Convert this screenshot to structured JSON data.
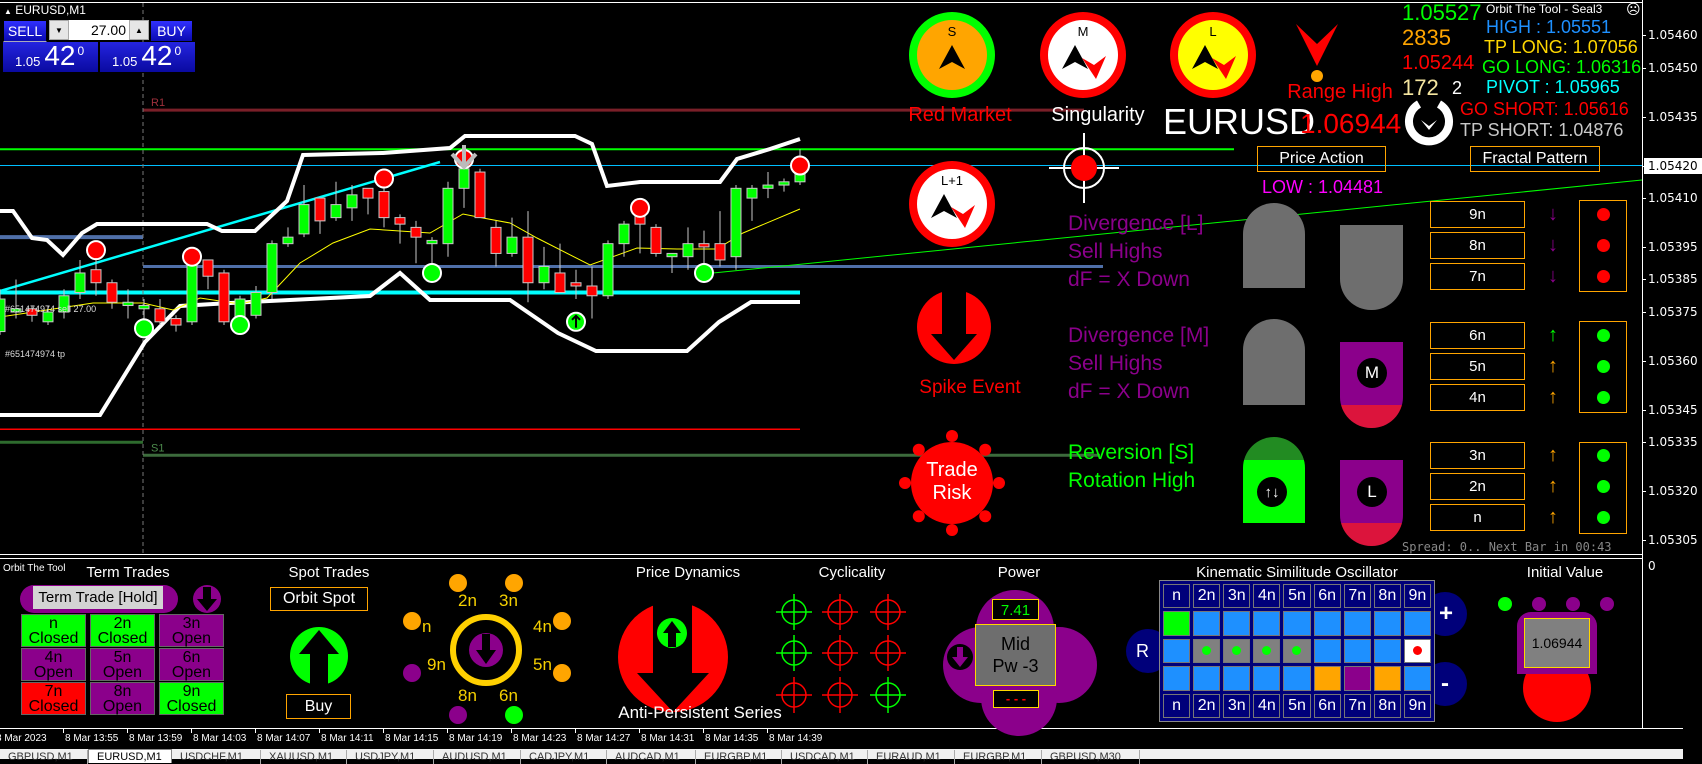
{
  "window": {
    "symbol_title": "EURUSD,M1"
  },
  "trade_panel": {
    "sell_label": "SELL",
    "buy_label": "BUY",
    "lot": "27.00",
    "sell_price": {
      "prefix": "1.05",
      "big": "42",
      "sup": "0"
    },
    "buy_price": {
      "prefix": "1.05",
      "big": "42",
      "sup": "0"
    }
  },
  "chart_data": {
    "type": "candlestick",
    "symbol": "EURUSD",
    "timeframe": "M1",
    "colors": {
      "up": "#00ff00",
      "down": "#ff0000"
    },
    "candles": [
      [
        "13:51",
        1.05369,
        1.05382,
        1.05368,
        1.05379
      ],
      [
        "13:52",
        1.05375,
        1.05385,
        1.05373,
        1.05376
      ],
      [
        "13:53",
        1.05376,
        1.05377,
        1.05372,
        1.05374
      ],
      [
        "13:54",
        1.05372,
        1.05377,
        1.05371,
        1.05375
      ],
      [
        "13:55",
        1.05375,
        1.05382,
        1.05373,
        1.0538
      ],
      [
        "13:56",
        1.05381,
        1.05391,
        1.05379,
        1.05387
      ],
      [
        "13:57",
        1.05388,
        1.05394,
        1.0538,
        1.05384
      ],
      [
        "13:58",
        1.05384,
        1.05385,
        1.05376,
        1.05378
      ],
      [
        "13:59",
        1.05377,
        1.05382,
        1.05373,
        1.05378
      ],
      [
        "14:00",
        1.05376,
        1.05379,
        1.05373,
        1.05377
      ],
      [
        "14:01",
        1.05376,
        1.05379,
        1.05371,
        1.05372
      ],
      [
        "14:02",
        1.05373,
        1.05374,
        1.05369,
        1.05371
      ],
      [
        "14:03",
        1.05372,
        1.05392,
        1.05371,
        1.0539
      ],
      [
        "14:04",
        1.05391,
        1.05391,
        1.05382,
        1.05386
      ],
      [
        "14:05",
        1.05387,
        1.05388,
        1.05371,
        1.05372
      ],
      [
        "14:06",
        1.05373,
        1.0538,
        1.05372,
        1.05379
      ],
      [
        "14:07",
        1.05374,
        1.05383,
        1.05373,
        1.05381
      ],
      [
        "14:08",
        1.05381,
        1.05397,
        1.05379,
        1.05396
      ],
      [
        "14:09",
        1.05396,
        1.05401,
        1.05395,
        1.05398
      ],
      [
        "14:10",
        1.05399,
        1.05414,
        1.05398,
        1.05408
      ],
      [
        "14:11",
        1.0541,
        1.0541,
        1.05399,
        1.05403
      ],
      [
        "14:12",
        1.05404,
        1.05415,
        1.05403,
        1.05408
      ],
      [
        "14:13",
        1.05407,
        1.05414,
        1.05403,
        1.05411
      ],
      [
        "14:14",
        1.05413,
        1.05413,
        1.05405,
        1.0541
      ],
      [
        "14:15",
        1.05412,
        1.05417,
        1.05401,
        1.05404
      ],
      [
        "14:16",
        1.05404,
        1.05405,
        1.05396,
        1.05402
      ],
      [
        "14:17",
        1.05401,
        1.05403,
        1.0539,
        1.05398
      ],
      [
        "14:18",
        1.05396,
        1.05398,
        1.05386,
        1.05397
      ],
      [
        "14:19",
        1.05396,
        1.05415,
        1.05392,
        1.05413
      ],
      [
        "14:20",
        1.05413,
        1.05421,
        1.05407,
        1.05419
      ],
      [
        "14:21",
        1.05418,
        1.05419,
        1.05404,
        1.05404
      ],
      [
        "14:22",
        1.05401,
        1.05403,
        1.05389,
        1.05393
      ],
      [
        "14:23",
        1.05393,
        1.05404,
        1.05392,
        1.05398
      ],
      [
        "14:24",
        1.05398,
        1.05406,
        1.05378,
        1.05384
      ],
      [
        "14:25",
        1.05384,
        1.05395,
        1.05382,
        1.05389
      ],
      [
        "14:26",
        1.05387,
        1.05396,
        1.05381,
        1.05381
      ],
      [
        "14:27",
        1.05384,
        1.05388,
        1.05379,
        1.05383
      ],
      [
        "14:28",
        1.05383,
        1.05389,
        1.05373,
        1.0538
      ],
      [
        "14:29",
        1.0538,
        1.05397,
        1.05379,
        1.05396
      ],
      [
        "14:30",
        1.05396,
        1.05403,
        1.05392,
        1.05402
      ],
      [
        "14:31",
        1.05405,
        1.05407,
        1.05393,
        1.05402
      ],
      [
        "14:32",
        1.05401,
        1.05402,
        1.05392,
        1.05393
      ],
      [
        "14:33",
        1.05392,
        1.05393,
        1.05387,
        1.05393
      ],
      [
        "14:34",
        1.05392,
        1.05401,
        1.05388,
        1.05396
      ],
      [
        "14:35",
        1.05396,
        1.054,
        1.05387,
        1.05395
      ],
      [
        "14:36",
        1.05396,
        1.05406,
        1.05389,
        1.05391
      ],
      [
        "14:37",
        1.05392,
        1.05414,
        1.05388,
        1.05413
      ],
      [
        "14:38",
        1.0541,
        1.05414,
        1.05403,
        1.05413
      ],
      [
        "14:39",
        1.05413,
        1.05418,
        1.0541,
        1.05414
      ],
      [
        "14:40",
        1.05414,
        1.05416,
        1.05412,
        1.05415
      ],
      [
        "14:41",
        1.05415,
        1.05425,
        1.05414,
        1.0542
      ]
    ],
    "markers": [
      {
        "time": "13:57",
        "price": 1.05394,
        "kind": "sell"
      },
      {
        "time": "14:03",
        "price": 1.05392,
        "kind": "sell"
      },
      {
        "time": "14:15",
        "price": 1.05416,
        "kind": "sell"
      },
      {
        "time": "14:31",
        "price": 1.05407,
        "kind": "sell"
      },
      {
        "time": "14:41",
        "price": 1.0542,
        "kind": "sell"
      },
      {
        "time": "14:00",
        "price": 1.0537,
        "kind": "buy"
      },
      {
        "time": "14:06",
        "price": 1.05371,
        "kind": "buy"
      },
      {
        "time": "14:18",
        "price": 1.05387,
        "kind": "buy"
      },
      {
        "time": "14:27",
        "price": 1.05372,
        "kind": "buy-arrow"
      },
      {
        "time": "14:35",
        "price": 1.05387,
        "kind": "buy"
      },
      {
        "time": "14:20",
        "price": 1.05422,
        "kind": "down-arrow"
      }
    ],
    "levels": [
      {
        "price": 1.05437,
        "color": "#7a1f28",
        "label": "R1"
      },
      {
        "price": 1.05425,
        "color": "#00ff00"
      },
      {
        "price": 1.0542,
        "color": "#00bfff"
      },
      {
        "price": 1.05398,
        "color": "#4f6fa8"
      },
      {
        "price": 1.05389,
        "color": "#4f6fa8"
      },
      {
        "price": 1.05381,
        "color": "#00ffff"
      },
      {
        "price": 1.05339,
        "color": "#ff0000"
      },
      {
        "price": 1.05335,
        "color": "#2e6b2e"
      },
      {
        "price": 1.05331,
        "color": "#3c6b3c",
        "label": "S1"
      }
    ],
    "order_labels": [
      "#651474974 sell 27.00",
      "#651474974 tp"
    ],
    "price_axis": [
      1.0546,
      1.0545,
      1.05435,
      1.0542,
      1.0541,
      1.05395,
      1.05385,
      1.05375,
      1.0536,
      1.05345,
      1.05335,
      1.0532,
      1.05305
    ],
    "current_price": "1.05420",
    "time_axis": [
      "8 Mar 2023",
      "8 Mar 13:55",
      "8 Mar 13:59",
      "8 Mar 14:03",
      "8 Mar 14:07",
      "8 Mar 14:11",
      "8 Mar 14:15",
      "8 Mar 14:19",
      "8 Mar 14:23",
      "8 Mar 14:27",
      "8 Mar 14:31",
      "8 Mar 14:35",
      "8 Mar 14:39"
    ],
    "indicator_axis": "0"
  },
  "info": {
    "title": "Orbit The Tool - Seal3",
    "price_green": "1.05527",
    "high": "HIGH : 1.05551",
    "count_orange": "2835",
    "tp_long": "TP LONG: 1.07056",
    "big_red": "1.06944",
    "count_white": "2",
    "go_long": "GO LONG: 1.06316",
    "price_red": "1.05244",
    "pivot": "PIVOT : 1.05965",
    "count_yellow": "172",
    "go_short": "GO SHORT: 1.05616",
    "symbol": "EURUSD",
    "tp_short": "TP SHORT: 1.04876",
    "low": "LOW : 1.04481"
  },
  "signals": {
    "gauges": [
      {
        "letter": "S",
        "ring": "#00ff00",
        "fill": "#ffa500",
        "chevron": false
      },
      {
        "letter": "M",
        "ring": "#ff0000",
        "fill": "#ffffff",
        "chevron": true
      },
      {
        "letter": "L",
        "ring": "#ff0000",
        "fill": "#ffff00",
        "chevron": true
      },
      {
        "letter": "L+1",
        "ring": "#ff0000",
        "fill": "#ffffff",
        "chevron": true
      }
    ],
    "red_market": "Red Market",
    "singularity": "Singularity",
    "range_high": "Range High",
    "spike_event": "Spike Event",
    "trade_risk_1": "Trade",
    "trade_risk_2": "Risk",
    "price_action": "Price Action",
    "fractal_pattern": "Fractal Pattern",
    "div_l": [
      "Divergence [L]",
      "Sell Highs",
      "dF = X Down"
    ],
    "div_m": [
      "Divergence [M]",
      "Sell Highs",
      "dF = X Down"
    ],
    "rev_s": [
      "Reversion [S]",
      "Rotation High"
    ],
    "m_badge": "M",
    "l_badge": "L",
    "fractal_rows": [
      {
        "label": "9n",
        "arrow": "down",
        "arrow_color": "#8b008b",
        "dot": "#ff0000"
      },
      {
        "label": "8n",
        "arrow": "down",
        "arrow_color": "#8b008b",
        "dot": "#ff0000"
      },
      {
        "label": "7n",
        "arrow": "down",
        "arrow_color": "#8b008b",
        "dot": "#ff0000"
      },
      {
        "label": "6n",
        "arrow": "up",
        "arrow_color": "#00ff00",
        "dot": "#00ff00"
      },
      {
        "label": "5n",
        "arrow": "up",
        "arrow_color": "#ffa500",
        "dot": "#00ff00"
      },
      {
        "label": "4n",
        "arrow": "up",
        "arrow_color": "#ffa500",
        "dot": "#00ff00"
      },
      {
        "label": "3n",
        "arrow": "up",
        "arrow_color": "#ffa500",
        "dot": "#00ff00"
      },
      {
        "label": "2n",
        "arrow": "up",
        "arrow_color": "#ffa500",
        "dot": "#00ff00"
      },
      {
        "label": "n",
        "arrow": "up",
        "arrow_color": "#ffa500",
        "dot": "#00ff00"
      }
    ],
    "spread": "Spread: 0.. Next Bar in 00:43"
  },
  "bottom": {
    "brand": "Orbit The Tool",
    "term_trades": {
      "title": "Term Trades",
      "hold_button": "Term Trade [Hold]",
      "cells": [
        {
          "n": "n",
          "state": "Closed",
          "color": "#00ff00"
        },
        {
          "n": "4n",
          "state": "Open",
          "color": "#8b008b"
        },
        {
          "n": "7n",
          "state": "Closed",
          "color": "#ff0000"
        },
        {
          "n": "2n",
          "state": "Closed",
          "color": "#00ff00"
        },
        {
          "n": "5n",
          "state": "Open",
          "color": "#8b008b"
        },
        {
          "n": "8n",
          "state": "Open",
          "color": "#8b008b"
        },
        {
          "n": "3n",
          "state": "Open",
          "color": "#8b008b"
        },
        {
          "n": "6n",
          "state": "Open",
          "color": "#8b008b"
        },
        {
          "n": "9n",
          "state": "Closed",
          "color": "#00ff00"
        }
      ]
    },
    "spot_trades": {
      "title": "Spot Trades",
      "orbit_spot": "Orbit Spot",
      "buy": "Buy"
    },
    "dial": {
      "labels": [
        "2n",
        "3n",
        "n",
        "4n",
        "9n",
        "5n",
        "8n",
        "6n"
      ],
      "dots": [
        "#ffa500",
        "#ffa500",
        "#ffa500",
        "#ffa500",
        "#8b008b",
        "#ffa500",
        "#8b008b",
        "#00ff00"
      ]
    },
    "price_dynamics": {
      "title": "Price Dynamics",
      "caption": "Anti-Persistent Series"
    },
    "cyclicality": {
      "title": "Cyclicality",
      "grid": [
        [
          "#00ff00",
          "#ff0000",
          "#ff0000"
        ],
        [
          "#00ff00",
          "#ff0000",
          "#ff0000"
        ],
        [
          "#ff0000",
          "#ff0000",
          "#00ff00"
        ]
      ]
    },
    "power": {
      "title": "Power",
      "value": "7.41",
      "state_1": "Mid",
      "state_2": "Pw -3",
      "lower": "- - -"
    },
    "kso": {
      "title": "Kinematic Similitude Oscillator",
      "headers": [
        "n",
        "2n",
        "3n",
        "4n",
        "5n",
        "6n",
        "7n",
        "8n",
        "9n"
      ],
      "rows": [
        [
          "#00ff00",
          "#1e90ff",
          "#1e90ff",
          "#1e90ff",
          "#1e90ff",
          "#1e90ff",
          "#1e90ff",
          "#1e90ff",
          "#1e90ff"
        ],
        [
          "#1e90ff",
          "#808080:#00ff00",
          "#808080:#00ff00",
          "#808080:#00ff00",
          "#808080:#00ff00",
          "#1e90ff",
          "#1e90ff",
          "#1e90ff",
          "#ffffff:#ff0000"
        ],
        [
          "#1e90ff",
          "#1e90ff",
          "#1e90ff",
          "#1e90ff",
          "#1e90ff",
          "#ffa500",
          "#8b008b",
          "#ffa500",
          "#1e90ff"
        ]
      ],
      "reset": "R",
      "plus": "+",
      "minus": "-"
    },
    "initial_value": {
      "title": "Initial Value",
      "value": "1.06944",
      "dots": [
        "#00ff00",
        "#8b008b",
        "#8b008b",
        "#8b008b"
      ]
    }
  },
  "tabs": [
    "GBPUSD,M1",
    "EURUSD,M1",
    "USDCHF,M1",
    "XAUUSD,M1",
    "USDJPY,M1",
    "AUDUSD,M1",
    "CADJPY,M1",
    "AUDCAD,M1",
    "EURGBP,M1",
    "USDCAD,M1",
    "EURAUD,M1",
    "EURGBP,M1",
    "GBPUSD,M30"
  ],
  "active_tab": 1
}
